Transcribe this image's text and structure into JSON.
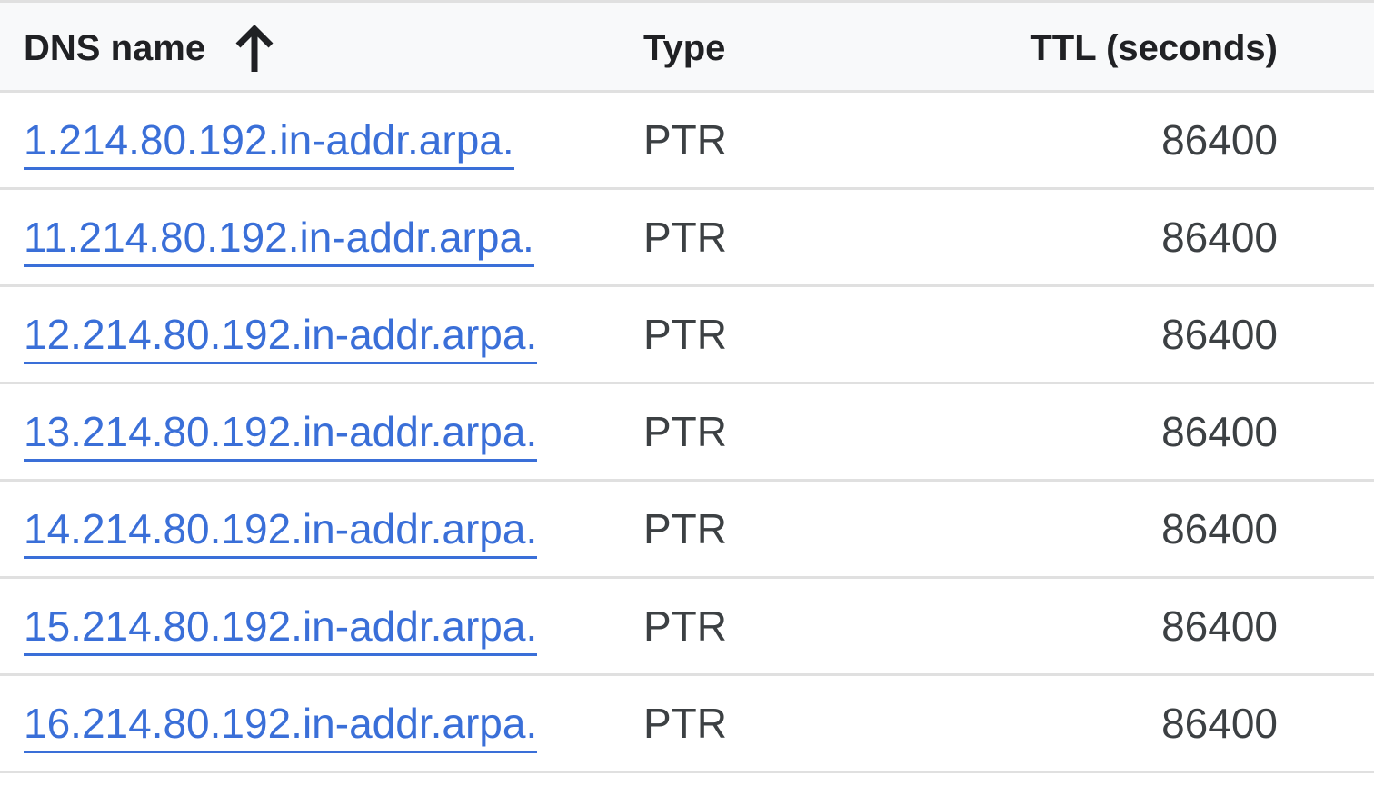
{
  "table": {
    "columns": {
      "dns_name": "DNS name",
      "type": "Type",
      "ttl": "TTL (seconds)"
    },
    "sort_icon": "arrow-upward-icon",
    "rows": [
      {
        "dns_name": "1.214.80.192.in-addr.arpa.",
        "type": "PTR",
        "ttl": "86400"
      },
      {
        "dns_name": "11.214.80.192.in-addr.arpa.",
        "type": "PTR",
        "ttl": "86400"
      },
      {
        "dns_name": "12.214.80.192.in-addr.arpa.",
        "type": "PTR",
        "ttl": "86400"
      },
      {
        "dns_name": "13.214.80.192.in-addr.arpa.",
        "type": "PTR",
        "ttl": "86400"
      },
      {
        "dns_name": "14.214.80.192.in-addr.arpa.",
        "type": "PTR",
        "ttl": "86400"
      },
      {
        "dns_name": "15.214.80.192.in-addr.arpa.",
        "type": "PTR",
        "ttl": "86400"
      },
      {
        "dns_name": "16.214.80.192.in-addr.arpa.",
        "type": "PTR",
        "ttl": "86400"
      }
    ]
  },
  "colors": {
    "link": "#3a6fd8",
    "text": "#3c4043",
    "header_text": "#202124",
    "header_bg": "#f8f9fa",
    "divider": "#e0e0e0"
  }
}
